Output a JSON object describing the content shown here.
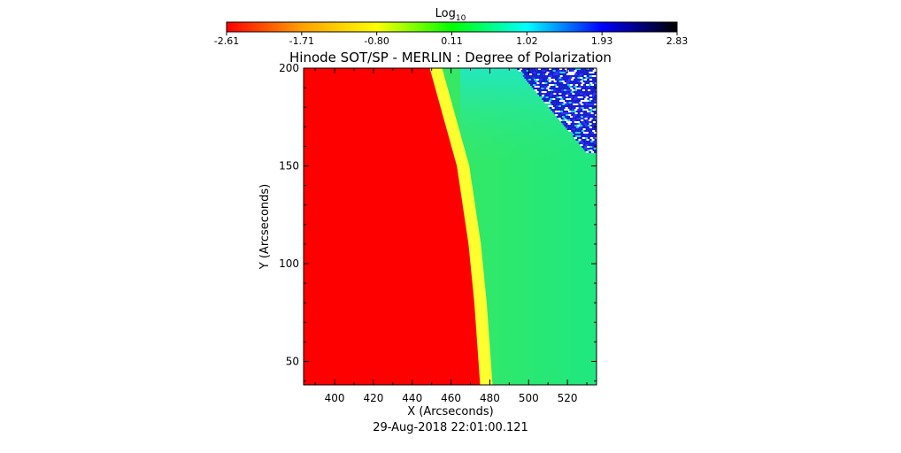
{
  "colorbar": {
    "label_base": "Log",
    "label_sub": "10",
    "ticks": [
      "-2.61",
      "-1.71",
      "-0.80",
      "0.11",
      "1.02",
      "1.93",
      "2.83"
    ],
    "range": [
      -2.61,
      2.83
    ],
    "colors": [
      "#ff0000",
      "#ffa000",
      "#ffff00",
      "#00ff00",
      "#00ffff",
      "#0000ff",
      "#000000"
    ]
  },
  "chart_data": {
    "type": "heatmap",
    "title": "Hinode SOT/SP - MERLIN : Degree of Polarization",
    "xlabel": "X (Arcseconds)",
    "ylabel": "Y (Arcseconds)",
    "xlim": [
      384,
      535
    ],
    "ylim": [
      38,
      200
    ],
    "xticks": [
      400,
      420,
      440,
      460,
      480,
      500,
      520
    ],
    "yticks": [
      50,
      100,
      150,
      200
    ],
    "limb_boundary": [
      [
        449,
        200
      ],
      [
        456,
        175
      ],
      [
        463,
        150
      ],
      [
        469,
        110
      ],
      [
        472,
        80
      ],
      [
        475,
        38
      ]
    ],
    "regions": [
      {
        "name": "disk",
        "value": -2.61,
        "color": "#ff0000"
      },
      {
        "name": "limb",
        "value": -1.2,
        "color": "#ffff00"
      },
      {
        "name": "off-limb",
        "value": 0.0,
        "color": "#22e860"
      },
      {
        "name": "noise",
        "value": 2.0,
        "color": "#2020c0"
      }
    ]
  },
  "footer": {
    "timestamp": "29-Aug-2018 22:01:00.121"
  }
}
